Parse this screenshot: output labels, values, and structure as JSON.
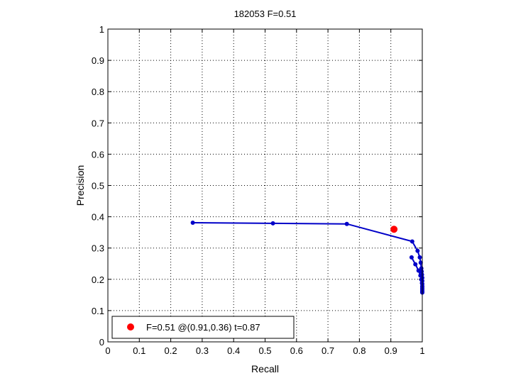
{
  "chart_data": {
    "type": "line",
    "title": "182053 F=0.51",
    "xlabel": "Recall",
    "ylabel": "Precision",
    "xlim": [
      0,
      1
    ],
    "ylim": [
      0,
      1
    ],
    "xticks": [
      "0",
      "0.1",
      "0.2",
      "0.3",
      "0.4",
      "0.5",
      "0.6",
      "0.7",
      "0.8",
      "0.9",
      "1"
    ],
    "yticks": [
      "0",
      "0.1",
      "0.2",
      "0.3",
      "0.4",
      "0.5",
      "0.6",
      "0.7",
      "0.8",
      "0.9",
      "1"
    ],
    "grid": true,
    "legend_position": "bottom-left",
    "series": [
      {
        "color": "#0000c8",
        "x": [
          0.27,
          0.525,
          0.76,
          0.968,
          0.985,
          0.992,
          0.995,
          0.997,
          0.998,
          0.999,
          1.0,
          1.0,
          1.0,
          1.0,
          1.0,
          1.0,
          1.0
        ],
        "y": [
          0.381,
          0.379,
          0.377,
          0.321,
          0.291,
          0.27,
          0.253,
          0.235,
          0.225,
          0.215,
          0.205,
          0.195,
          0.185,
          0.175,
          0.168,
          0.162,
          0.158
        ]
      },
      {
        "color": "#0000c8",
        "x": [
          0.966,
          0.978,
          0.988,
          0.994,
          0.997,
          0.999,
          1.0,
          1.0,
          1.0,
          1.0
        ],
        "y": [
          0.27,
          0.248,
          0.228,
          0.212,
          0.199,
          0.188,
          0.178,
          0.17,
          0.163,
          0.158
        ]
      }
    ],
    "best_point": {
      "x": 0.91,
      "y": 0.36,
      "color": "#ff0000"
    },
    "legend": {
      "label": "F=0.51 @(0.91,0.36) t=0.87",
      "marker_color": "#ff0000"
    }
  }
}
